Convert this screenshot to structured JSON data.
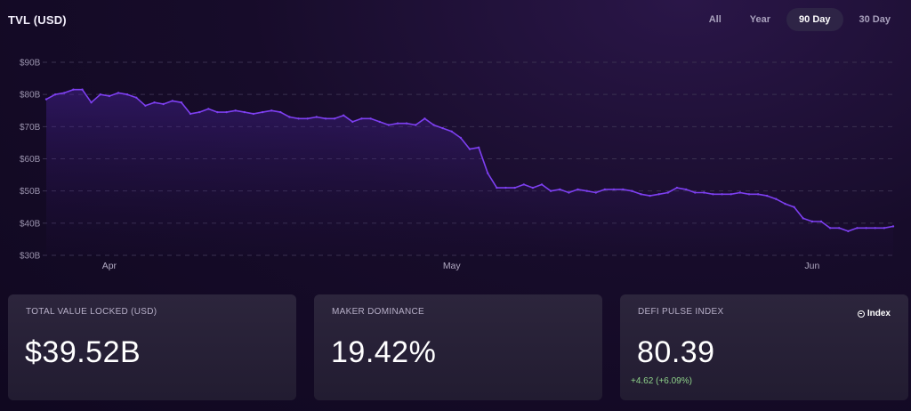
{
  "header": {
    "title": "TVL (USD)"
  },
  "ranges": [
    {
      "label": "All",
      "active": false
    },
    {
      "label": "Year",
      "active": false
    },
    {
      "label": "90 Day",
      "active": true
    },
    {
      "label": "30 Day",
      "active": false
    }
  ],
  "colors": {
    "line": "#7d3ff0",
    "background": "#130a23",
    "change_positive": "#8fd28a"
  },
  "chart_data": {
    "type": "area",
    "title": "TVL (USD)",
    "xlabel": "",
    "ylabel": "",
    "x_tick_labels": [
      {
        "label": "Apr",
        "index": 7
      },
      {
        "label": "May",
        "index": 45
      },
      {
        "label": "Jun",
        "index": 85
      }
    ],
    "y_ticks": [
      "$30B",
      "$40B",
      "$50B",
      "$60B",
      "$70B",
      "$80B",
      "$90B"
    ],
    "ylim": [
      30,
      90
    ],
    "grid": true,
    "series": [
      {
        "values": [
          78.5,
          80,
          80.5,
          81.5,
          81.5,
          77.5,
          80,
          79.5,
          80.5,
          80,
          79,
          76.5,
          77.5,
          77,
          78,
          77.5,
          74,
          74.5,
          75.5,
          74.5,
          74.5,
          75,
          74.5,
          74,
          74.5,
          75,
          74.5,
          73,
          72.5,
          72.5,
          73,
          72.5,
          72.5,
          73.5,
          71.5,
          72.5,
          72.5,
          71.5,
          70.5,
          71,
          71,
          70.5,
          72.5,
          70.5,
          69.5,
          68.5,
          66.5,
          63,
          63.5,
          55.5,
          51,
          51,
          51,
          52,
          51,
          52,
          50,
          50.5,
          49.5,
          50.5,
          50,
          49.5,
          50.5,
          50.5,
          50.5,
          50,
          49,
          48.5,
          49,
          49.5,
          51,
          50.5,
          49.5,
          49.5,
          49,
          49,
          49,
          49.5,
          49,
          49,
          48.5,
          47.5,
          46,
          45,
          41.5,
          40.5,
          40.5,
          38.5,
          38.5,
          37.5,
          38.5,
          38.5,
          38.5,
          38.5,
          39
        ]
      }
    ]
  },
  "cards": [
    {
      "label": "TOTAL VALUE LOCKED (USD)",
      "value": "$39.52B"
    },
    {
      "label": "MAKER DOMINANCE",
      "value": "19.42%"
    },
    {
      "label": "DEFI PULSE INDEX",
      "value": "80.39",
      "change": "+4.62  (+6.09%)",
      "badge": "Index"
    }
  ]
}
